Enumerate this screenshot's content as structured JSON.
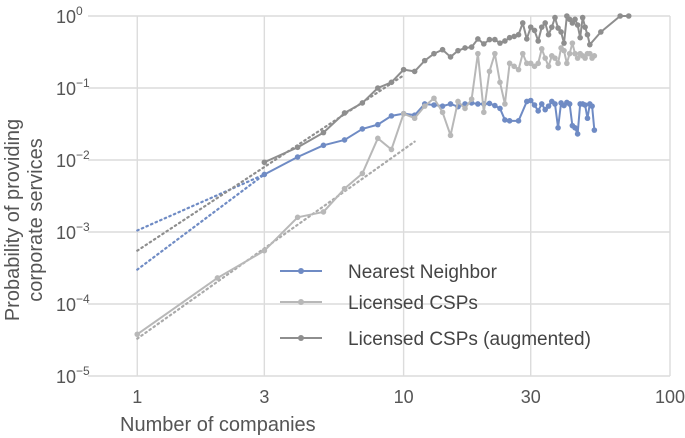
{
  "chart_data": {
    "type": "line",
    "xscale": "log",
    "yscale": "log",
    "xlim": [
      0.7,
      100
    ],
    "ylim": [
      1e-05,
      1
    ],
    "grid": true,
    "legend": "lower-right",
    "xlabel": "Number of companies",
    "ylabel_lines": [
      "Probability of providing",
      "corporate services"
    ],
    "x_ticks": [
      {
        "value": 1,
        "label": "1"
      },
      {
        "value": 3,
        "label": "3"
      },
      {
        "value": 10,
        "label": "10"
      },
      {
        "value": 30,
        "label": "30"
      },
      {
        "value": 100,
        "label": "100"
      }
    ],
    "y_ticks": [
      {
        "value": 1e-05,
        "base": "10",
        "exp": "−5"
      },
      {
        "value": 0.0001,
        "base": "10",
        "exp": "−4"
      },
      {
        "value": 0.001,
        "base": "10",
        "exp": "−3"
      },
      {
        "value": 0.01,
        "base": "10",
        "exp": "−2"
      },
      {
        "value": 0.1,
        "base": "10",
        "exp": "−1"
      },
      {
        "value": 1,
        "base": "10",
        "exp": "0"
      }
    ],
    "series": [
      {
        "name": "Nearest Neighbor",
        "color": "#6f8bc4",
        "points": [
          [
            3,
            0.0063
          ],
          [
            4,
            0.011
          ],
          [
            5,
            0.016
          ],
          [
            6,
            0.019
          ],
          [
            7,
            0.027
          ],
          [
            8,
            0.031
          ],
          [
            9,
            0.041
          ],
          [
            10,
            0.044
          ],
          [
            11,
            0.042
          ],
          [
            12,
            0.06
          ],
          [
            13,
            0.058
          ],
          [
            14,
            0.056
          ],
          [
            15,
            0.06
          ],
          [
            16,
            0.055
          ],
          [
            17,
            0.06
          ],
          [
            18,
            0.062
          ],
          [
            19,
            0.06
          ],
          [
            20,
            0.06
          ],
          [
            21,
            0.061
          ],
          [
            22,
            0.057
          ],
          [
            23,
            0.052
          ],
          [
            24,
            0.036
          ],
          [
            25,
            0.035
          ],
          [
            27,
            0.035
          ],
          [
            29,
            0.065
          ],
          [
            30,
            0.067
          ],
          [
            31,
            0.058
          ],
          [
            32,
            0.048
          ],
          [
            33,
            0.06
          ],
          [
            34,
            0.05
          ],
          [
            35,
            0.056
          ],
          [
            36,
            0.065
          ],
          [
            37,
            0.06
          ],
          [
            38,
            0.028
          ],
          [
            39,
            0.062
          ],
          [
            40,
            0.057
          ],
          [
            41,
            0.063
          ],
          [
            42,
            0.06
          ],
          [
            43,
            0.03
          ],
          [
            44,
            0.028
          ],
          [
            45,
            0.023
          ],
          [
            46,
            0.06
          ],
          [
            47,
            0.06
          ],
          [
            48,
            0.058
          ],
          [
            49,
            0.038
          ],
          [
            50,
            0.06
          ],
          [
            51,
            0.056
          ],
          [
            52,
            0.026
          ]
        ]
      },
      {
        "name": "Licensed CSPs",
        "color": "#b8b8b8",
        "points": [
          [
            1,
            3.8e-05
          ],
          [
            2,
            0.00023
          ],
          [
            3,
            0.00055
          ],
          [
            4,
            0.0016
          ],
          [
            5,
            0.0019
          ],
          [
            6,
            0.004
          ],
          [
            7,
            0.0065
          ],
          [
            8,
            0.02
          ],
          [
            9,
            0.014
          ],
          [
            10,
            0.044
          ],
          [
            11,
            0.038
          ],
          [
            12,
            0.056
          ],
          [
            13,
            0.072
          ],
          [
            14,
            0.046
          ],
          [
            15,
            0.022
          ],
          [
            16,
            0.065
          ],
          [
            17,
            0.052
          ],
          [
            18,
            0.07
          ],
          [
            19,
            0.3
          ],
          [
            20,
            0.046
          ],
          [
            21,
            0.17
          ],
          [
            22,
            0.3
          ],
          [
            23,
            0.12
          ],
          [
            24,
            0.06
          ],
          [
            25,
            0.22
          ],
          [
            26,
            0.2
          ],
          [
            27,
            0.18
          ],
          [
            28,
            0.3
          ],
          [
            29,
            0.22
          ],
          [
            30,
            0.22
          ],
          [
            31,
            0.2
          ],
          [
            32,
            0.22
          ],
          [
            33,
            0.35
          ],
          [
            34,
            0.26
          ],
          [
            35,
            0.2
          ],
          [
            36,
            0.28
          ],
          [
            37,
            0.26
          ],
          [
            38,
            0.22
          ],
          [
            39,
            0.36
          ],
          [
            40,
            0.33
          ],
          [
            41,
            0.22
          ],
          [
            42,
            0.3
          ],
          [
            43,
            0.42
          ],
          [
            44,
            0.3
          ],
          [
            45,
            0.26
          ],
          [
            46,
            0.3
          ],
          [
            47,
            0.28
          ],
          [
            48,
            0.26
          ],
          [
            49,
            0.3
          ],
          [
            50,
            0.3
          ],
          [
            51,
            0.26
          ],
          [
            52,
            0.28
          ]
        ]
      },
      {
        "name": "Licensed CSPs (augmented)",
        "color": "#8e8e8e",
        "points": [
          [
            3,
            0.0093
          ],
          [
            4,
            0.015
          ],
          [
            5,
            0.024
          ],
          [
            6,
            0.045
          ],
          [
            7,
            0.062
          ],
          [
            8,
            0.1
          ],
          [
            9,
            0.12
          ],
          [
            10,
            0.18
          ],
          [
            11,
            0.17
          ],
          [
            12,
            0.24
          ],
          [
            13,
            0.3
          ],
          [
            14,
            0.34
          ],
          [
            15,
            0.27
          ],
          [
            16,
            0.33
          ],
          [
            17,
            0.36
          ],
          [
            18,
            0.37
          ],
          [
            19,
            0.48
          ],
          [
            20,
            0.41
          ],
          [
            21,
            0.47
          ],
          [
            22,
            0.47
          ],
          [
            23,
            0.42
          ],
          [
            24,
            0.45
          ],
          [
            25,
            0.5
          ],
          [
            26,
            0.52
          ],
          [
            27,
            0.55
          ],
          [
            28,
            0.8
          ],
          [
            29,
            0.48
          ],
          [
            30,
            0.7
          ],
          [
            31,
            0.63
          ],
          [
            32,
            0.45
          ],
          [
            33,
            0.7
          ],
          [
            34,
            0.8
          ],
          [
            35,
            0.55
          ],
          [
            36,
            0.7
          ],
          [
            37,
            0.95
          ],
          [
            38,
            0.68
          ],
          [
            39,
            0.6
          ],
          [
            40,
            0.42
          ],
          [
            41,
            1.0
          ],
          [
            42,
            0.9
          ],
          [
            43,
            0.8
          ],
          [
            44,
            0.9
          ],
          [
            45,
            0.75
          ],
          [
            46,
            0.5
          ],
          [
            47,
            0.95
          ],
          [
            48,
            0.7
          ],
          [
            49,
            0.55
          ],
          [
            50,
            0.4
          ],
          [
            55,
            0.6
          ],
          [
            65,
            1.0
          ],
          [
            70,
            1.0
          ]
        ]
      }
    ],
    "fits": [
      {
        "series": "Nearest Neighbor",
        "color": "#6f8bc4",
        "x": [
          1,
          3
        ],
        "y": [
          0.0003,
          0.0063
        ]
      },
      {
        "series": "Nearest Neighbor",
        "color": "#6f8bc4",
        "x": [
          1,
          3
        ],
        "y": [
          0.00105,
          0.0063
        ]
      },
      {
        "series": "Licensed CSPs",
        "color": "#aaaaaa",
        "x": [
          1,
          11
        ],
        "y": [
          3.3e-05,
          0.018
        ]
      },
      {
        "series": "Licensed CSPs (augmented)",
        "color": "#8e8e8e",
        "x": [
          1,
          10
        ],
        "y": [
          0.00055,
          0.15
        ]
      }
    ]
  }
}
